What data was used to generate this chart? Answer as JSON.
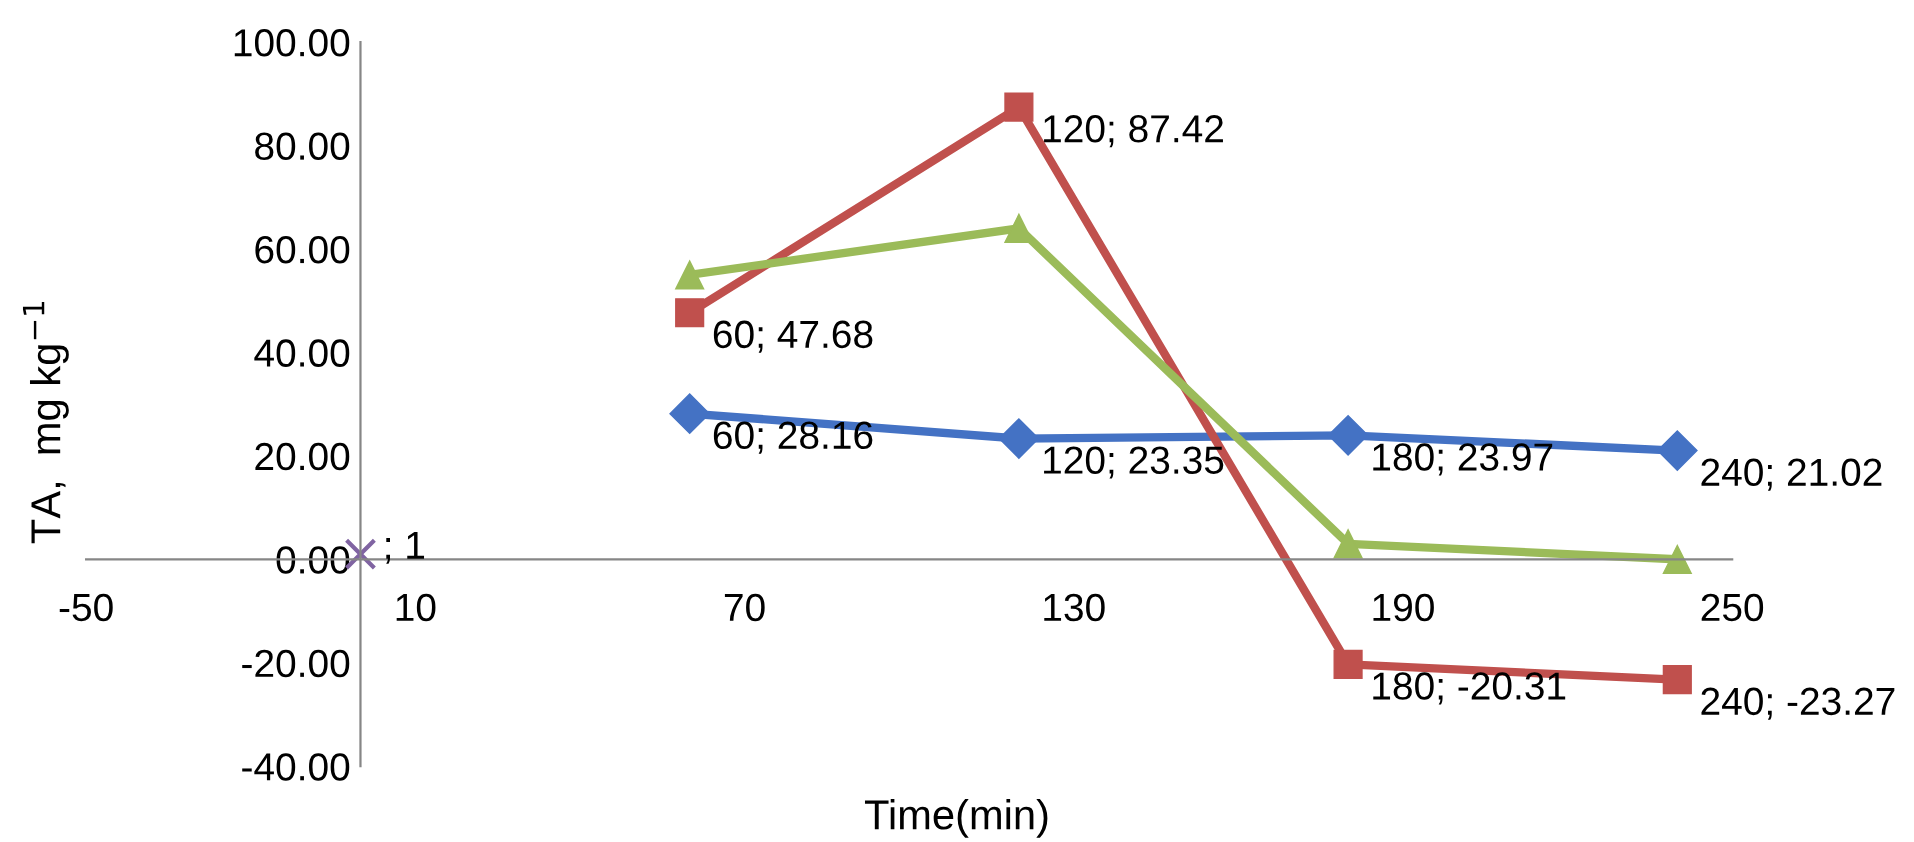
{
  "chart_data": {
    "type": "line",
    "xlabel": "Time(min)",
    "ylabel": "TA,  mg kg$^{−1}$",
    "xlim": [
      -50,
      250
    ],
    "xticks": [
      -50,
      10,
      70,
      130,
      190,
      250
    ],
    "ylim": [
      -40,
      100
    ],
    "yticks": [
      {
        "value": -40,
        "label": "-40.00"
      },
      {
        "value": -20,
        "label": "-20.00"
      },
      {
        "value": 0,
        "label": "0.00"
      },
      {
        "value": 20,
        "label": "20.00"
      },
      {
        "value": 40,
        "label": "40.00"
      },
      {
        "value": 60,
        "label": "60.00"
      },
      {
        "value": 80,
        "label": "80.00"
      },
      {
        "value": 100,
        "label": "100.00"
      }
    ],
    "grid": false,
    "legend": false,
    "series": [
      {
        "color": "#4472c4",
        "marker": "diamond",
        "x": [
          60,
          120,
          180,
          240
        ],
        "values": [
          28.16,
          23.35,
          23.97,
          21.02
        ],
        "value_labels": [
          "60; 28.16",
          "120; 23.35",
          "180; 23.97",
          "240; 21.02"
        ]
      },
      {
        "color": "#c0504d",
        "marker": "square",
        "x": [
          60,
          120,
          180,
          240
        ],
        "values": [
          47.68,
          87.42,
          -20.31,
          -23.27
        ],
        "value_labels": [
          "60; 47.68",
          "120; 87.42",
          "180; -20.31",
          "240; -23.27"
        ]
      },
      {
        "color": "#9bbb59",
        "marker": "triangle",
        "x": [
          60,
          120,
          180,
          240
        ],
        "values": [
          55,
          64,
          3,
          0
        ]
      },
      {
        "type": "scatter",
        "color": "#8064a2",
        "marker": "cross",
        "x": [
          0
        ],
        "values": [
          1
        ],
        "value_labels": [
          "; 1"
        ]
      }
    ]
  }
}
